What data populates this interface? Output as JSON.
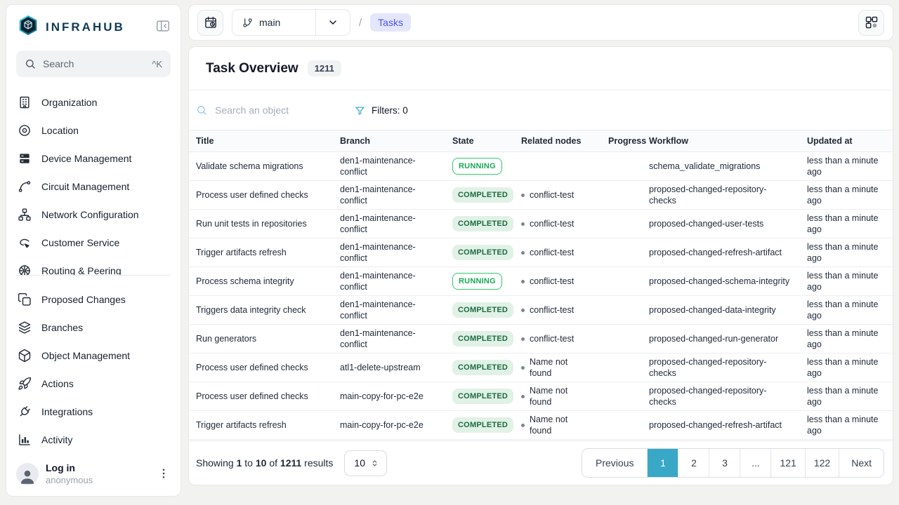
{
  "brand": {
    "name": "INFRAHUB"
  },
  "sidebar": {
    "search": {
      "placeholder": "Search",
      "shortcut": "^K"
    },
    "groups": [
      {
        "name": "objects",
        "items": [
          {
            "icon": "building-icon",
            "label": "Organization"
          },
          {
            "icon": "location-icon",
            "label": "Location"
          },
          {
            "icon": "server-icon",
            "label": "Device Management"
          },
          {
            "icon": "circuit-icon",
            "label": "Circuit Management"
          },
          {
            "icon": "network-icon",
            "label": "Network Configuration"
          },
          {
            "icon": "customer-service-icon",
            "label": "Customer Service"
          },
          {
            "icon": "routing-icon",
            "label": "Routing & Peering"
          }
        ]
      },
      {
        "name": "platform",
        "items": [
          {
            "icon": "proposed-changes-icon",
            "label": "Proposed Changes"
          },
          {
            "icon": "branches-icon",
            "label": "Branches"
          },
          {
            "icon": "object-management-icon",
            "label": "Object Management"
          },
          {
            "icon": "actions-icon",
            "label": "Actions"
          },
          {
            "icon": "integrations-icon",
            "label": "Integrations"
          },
          {
            "icon": "activity-icon",
            "label": "Activity"
          }
        ]
      }
    ],
    "user": {
      "title": "Log in",
      "subtitle": "anonymous"
    }
  },
  "topbar": {
    "branch": "main",
    "separator": "/",
    "breadcrumb": "Tasks"
  },
  "page": {
    "title": "Task Overview",
    "count": "1211"
  },
  "toolbar": {
    "search_placeholder": "Search an object",
    "filters": "Filters: 0"
  },
  "table": {
    "columns": [
      "Title",
      "Branch",
      "State",
      "Related nodes",
      "Progress",
      "Workflow",
      "Updated at"
    ],
    "rows": [
      {
        "title": "Validate schema migrations",
        "branch": "den1-maintenance-conflict",
        "state": "RUNNING",
        "related": "",
        "progress": "",
        "workflow": "schema_validate_migrations",
        "updated": "less than a minute ago"
      },
      {
        "title": "Process user defined checks",
        "branch": "den1-maintenance-conflict",
        "state": "COMPLETED",
        "related": "conflict-test",
        "progress": "",
        "workflow": "proposed-changed-repository-checks",
        "updated": "less than a minute ago"
      },
      {
        "title": "Run unit tests in repositories",
        "branch": "den1-maintenance-conflict",
        "state": "COMPLETED",
        "related": "conflict-test",
        "progress": "",
        "workflow": "proposed-changed-user-tests",
        "updated": "less than a minute ago"
      },
      {
        "title": "Trigger artifacts refresh",
        "branch": "den1-maintenance-conflict",
        "state": "COMPLETED",
        "related": "conflict-test",
        "progress": "",
        "workflow": "proposed-changed-refresh-artifact",
        "updated": "less than a minute ago"
      },
      {
        "title": "Process schema integrity",
        "branch": "den1-maintenance-conflict",
        "state": "RUNNING",
        "related": "conflict-test",
        "progress": "",
        "workflow": "proposed-changed-schema-integrity",
        "updated": "less than a minute ago"
      },
      {
        "title": "Triggers data integrity check",
        "branch": "den1-maintenance-conflict",
        "state": "COMPLETED",
        "related": "conflict-test",
        "progress": "",
        "workflow": "proposed-changed-data-integrity",
        "updated": "less than a minute ago"
      },
      {
        "title": "Run generators",
        "branch": "den1-maintenance-conflict",
        "state": "COMPLETED",
        "related": "conflict-test",
        "progress": "",
        "workflow": "proposed-changed-run-generator",
        "updated": "less than a minute ago"
      },
      {
        "title": "Process user defined checks",
        "branch": "atl1-delete-upstream",
        "state": "COMPLETED",
        "related": "Name not found",
        "progress": "",
        "workflow": "proposed-changed-repository-checks",
        "updated": "less than a minute ago"
      },
      {
        "title": "Process user defined checks",
        "branch": "main-copy-for-pc-e2e",
        "state": "COMPLETED",
        "related": "Name not found",
        "progress": "",
        "workflow": "proposed-changed-repository-checks",
        "updated": "less than a minute ago"
      },
      {
        "title": "Trigger artifacts refresh",
        "branch": "main-copy-for-pc-e2e",
        "state": "COMPLETED",
        "related": "Name not found",
        "progress": "",
        "workflow": "proposed-changed-refresh-artifact",
        "updated": "less than a minute ago"
      }
    ]
  },
  "pagination": {
    "summary": {
      "p1": "Showing",
      "n1": "1",
      "p2": "to",
      "n2": "10",
      "p3": "of",
      "n3": "1211",
      "p4": "results"
    },
    "page_size": "10",
    "buttons": [
      {
        "label": "Previous",
        "type": "prev"
      },
      {
        "label": "1",
        "active": true
      },
      {
        "label": "2"
      },
      {
        "label": "3"
      },
      {
        "label": "...",
        "disabled": true
      },
      {
        "label": "121"
      },
      {
        "label": "122"
      },
      {
        "label": "Next",
        "type": "next"
      }
    ]
  },
  "colors": {
    "accent_teal": "#38a8c6",
    "running_border": "#2ecb6f",
    "running_text": "#18a957",
    "completed_bg": "#e1f1e6",
    "completed_text": "#1b6b3f",
    "breadcrumb_bg": "#e3e6fc",
    "breadcrumb_text": "#4d53e8",
    "brand_navy": "#0e3a56"
  }
}
